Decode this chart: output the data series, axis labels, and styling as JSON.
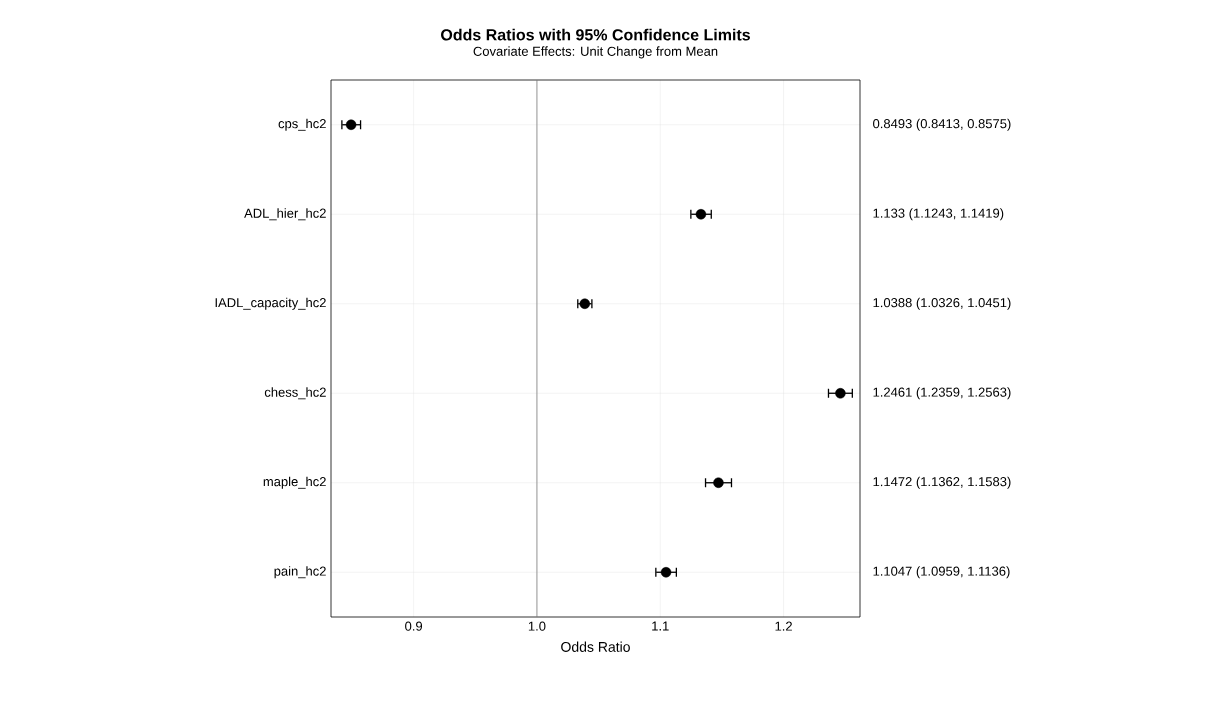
{
  "chart_data": {
    "type": "scatter",
    "orientation": "horizontal",
    "title": "Odds Ratios with 95% Confidence Limits",
    "subtitle": "Covariate Effects: Unit Change from Mean",
    "xlabel": "Odds Ratio",
    "categories": [
      "cps_hc2",
      "ADL_hier_hc2",
      "IADL_capacity_hc2",
      "chess_hc2",
      "maple_hc2",
      "pain_hc2"
    ],
    "values": [
      0.8493,
      1.133,
      1.0388,
      1.2461,
      1.1472,
      1.1047
    ],
    "errors": [
      [
        0.8413,
        0.8575
      ],
      [
        1.1243,
        1.1419
      ],
      [
        1.0326,
        1.0451
      ],
      [
        1.2359,
        1.2563
      ],
      [
        1.1362,
        1.1583
      ],
      [
        1.0959,
        1.1136
      ]
    ],
    "annotations": [
      "0.8493 (0.8413, 0.8575)",
      "1.133 (1.1243, 1.1419)",
      "1.0388 (1.0326, 1.0451)",
      "1.2461 (1.2359, 1.2563)",
      "1.1472 (1.1362, 1.1583)",
      "1.1047 (1.0959, 1.1136)"
    ],
    "color": "#000000",
    "xlim": [
      0.833,
      1.262
    ],
    "xticks": [
      {
        "value": 0.9,
        "label": "0.9"
      },
      {
        "value": 1.0,
        "label": "1.0"
      },
      {
        "value": 1.1,
        "label": "1.1"
      },
      {
        "value": 1.2,
        "label": "1.2"
      }
    ],
    "ref_lines": [
      {
        "axis": "x",
        "value": 1.0,
        "color": "#808080"
      }
    ],
    "grid": true,
    "marker": "circle"
  }
}
